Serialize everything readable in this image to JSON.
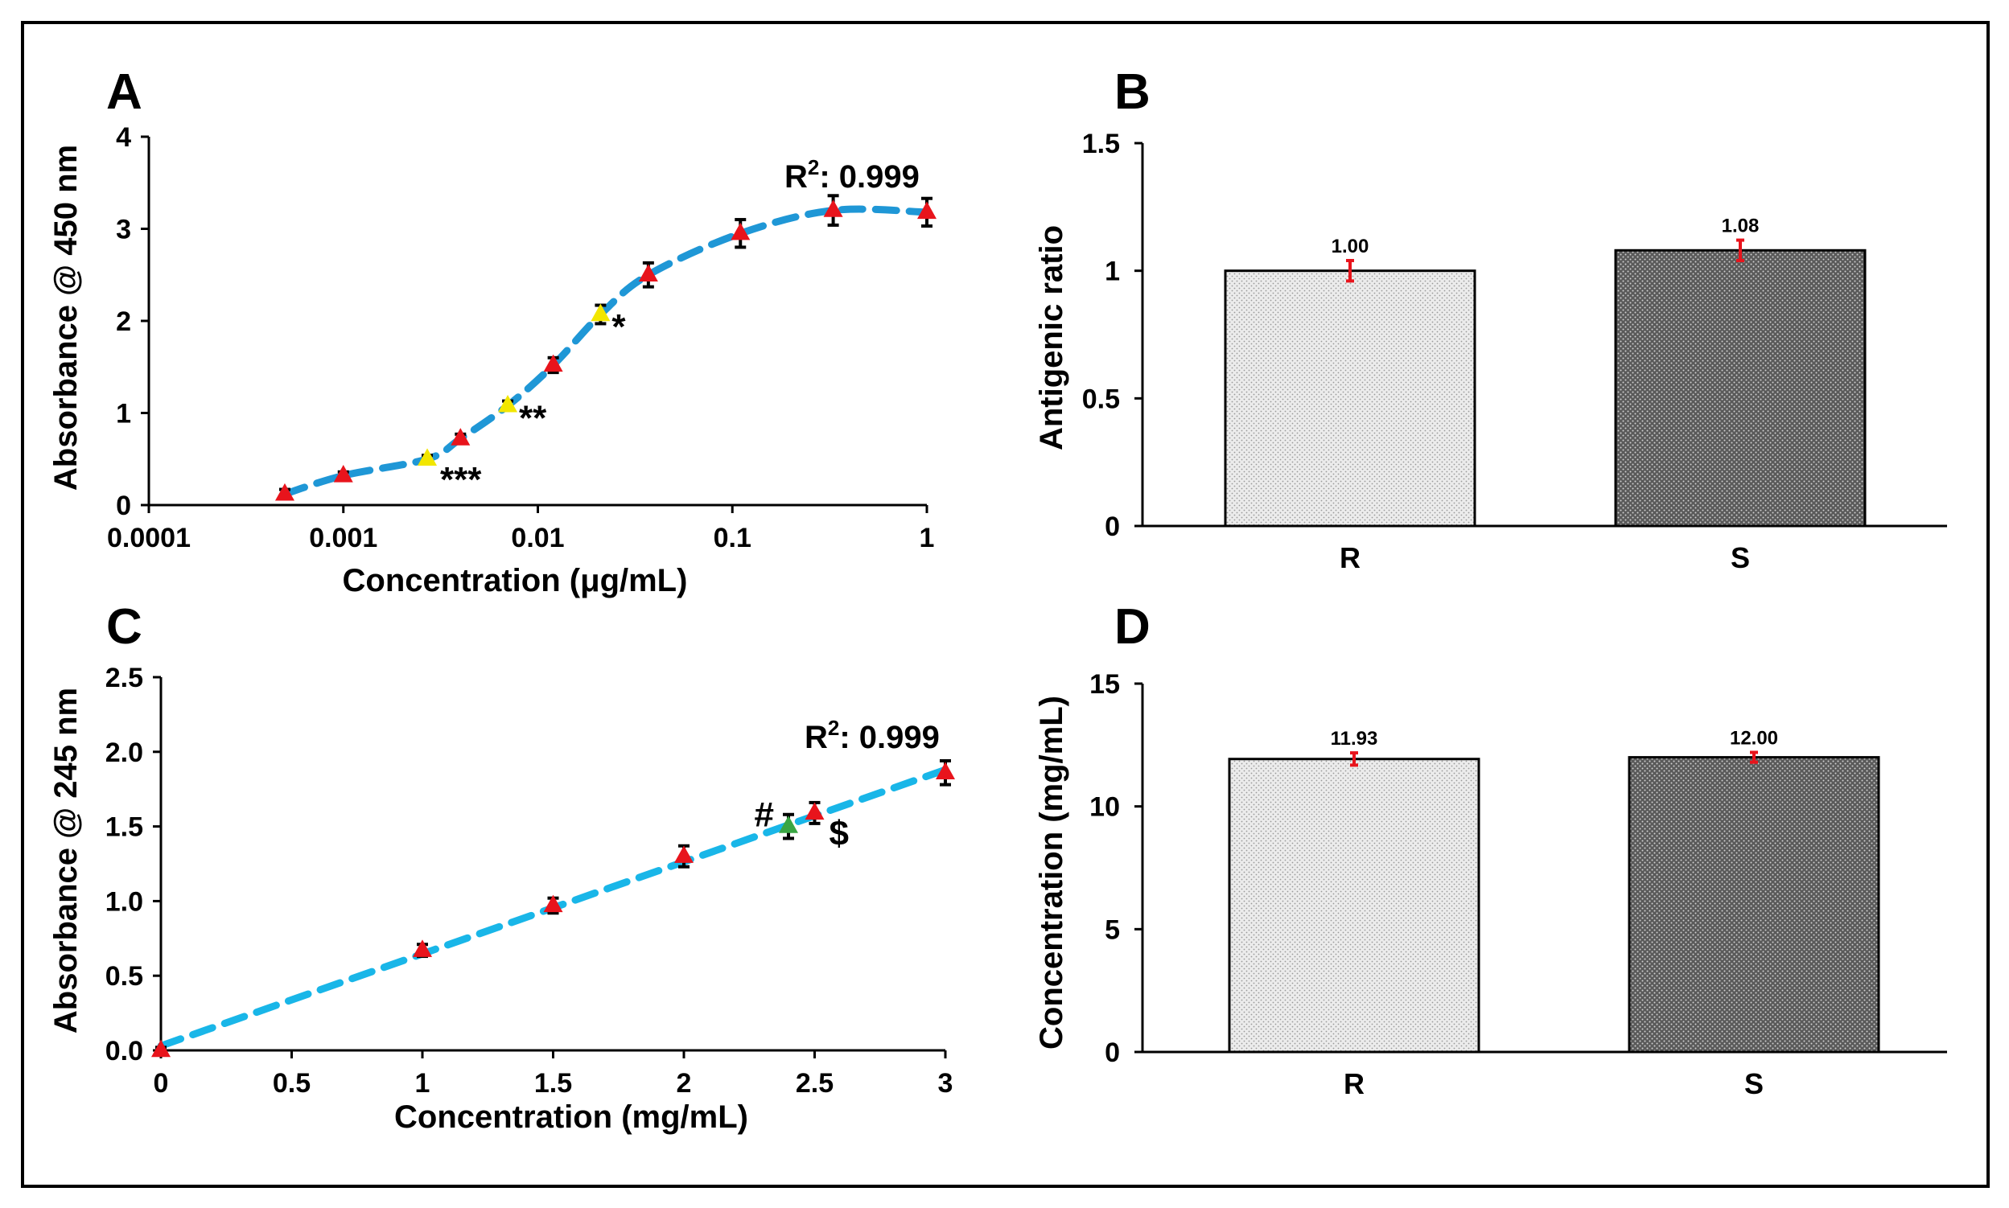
{
  "colors": {
    "curve": "#1f97d6",
    "curve_c": "#19b6e8",
    "marker": "#e8141c",
    "marker_highlight": "#f2e600",
    "marker_green": "#3aa643",
    "error_bar": "#000000",
    "bar_error": "#e8141c",
    "frame": "#000000"
  },
  "chart_data": [
    {
      "id": "A",
      "panel_label": "A",
      "type": "scatter",
      "x_scale": "log",
      "xlabel": "Concentration (μg/mL)",
      "ylabel": "Absorbance @ 450 nm",
      "xlim": [
        0.0001,
        1
      ],
      "ylim": [
        0,
        4
      ],
      "x_ticks": [
        0.0001,
        0.001,
        0.01,
        0.1,
        1
      ],
      "x_tick_labels": [
        "0.0001",
        "0.001",
        "0.01",
        "0.1",
        "1"
      ],
      "y_ticks": [
        0,
        1,
        2,
        3,
        4
      ],
      "y_tick_labels": [
        "0",
        "1",
        "2",
        "3",
        "4"
      ],
      "fit_label": "R",
      "fit_sup": "2",
      "fit_value": ": 0.999",
      "points": [
        {
          "x": 0.0005,
          "y": 0.12,
          "err": 0.05,
          "color": "red"
        },
        {
          "x": 0.001,
          "y": 0.32,
          "err": 0.04,
          "color": "red"
        },
        {
          "x": 0.0027,
          "y": 0.5,
          "err": 0.04,
          "color": "yellow",
          "annotation": "***"
        },
        {
          "x": 0.004,
          "y": 0.72,
          "err": 0.05,
          "color": "red"
        },
        {
          "x": 0.007,
          "y": 1.08,
          "err": 0.05,
          "color": "yellow",
          "annotation": "**"
        },
        {
          "x": 0.012,
          "y": 1.52,
          "err": 0.08,
          "color": "red"
        },
        {
          "x": 0.021,
          "y": 2.07,
          "err": 0.1,
          "color": "yellow",
          "annotation": "*"
        },
        {
          "x": 0.037,
          "y": 2.5,
          "err": 0.13,
          "color": "red"
        },
        {
          "x": 0.11,
          "y": 2.95,
          "err": 0.15,
          "color": "red"
        },
        {
          "x": 0.33,
          "y": 3.2,
          "err": 0.16,
          "color": "red"
        },
        {
          "x": 1.0,
          "y": 3.18,
          "err": 0.15,
          "color": "red"
        }
      ]
    },
    {
      "id": "B",
      "panel_label": "B",
      "type": "bar",
      "categories": [
        "R",
        "S"
      ],
      "values": [
        1.0,
        1.08
      ],
      "value_labels": [
        "1.00",
        "1.08"
      ],
      "errors": [
        0.04,
        0.04
      ],
      "patterns": [
        "light",
        "dark"
      ],
      "ylabel": "Antigenic ratio",
      "ylim": [
        0,
        1.5
      ],
      "y_ticks": [
        0,
        0.5,
        1,
        1.5
      ],
      "y_tick_labels": [
        "0",
        "0.5",
        "1",
        "1.5"
      ]
    },
    {
      "id": "C",
      "panel_label": "C",
      "type": "scatter",
      "xlabel": "Concentration (mg/mL)",
      "ylabel": "Absorbance @ 245 nm",
      "xlim": [
        0,
        3
      ],
      "ylim": [
        0,
        2.5
      ],
      "x_ticks": [
        0,
        0.5,
        1,
        1.5,
        2,
        2.5,
        3
      ],
      "x_tick_labels": [
        "0",
        "0.5",
        "1",
        "1.5",
        "2",
        "2.5",
        "3"
      ],
      "y_ticks": [
        0,
        0.5,
        1,
        1.5,
        2,
        2.5
      ],
      "y_tick_labels": [
        "0.0",
        "0.5",
        "1.0",
        "1.5",
        "2.0",
        "2.5"
      ],
      "fit_label": "R",
      "fit_sup": "2",
      "fit_value": ": 0.999",
      "fit_line": {
        "x0": 0,
        "y0": 0.03,
        "x1": 3,
        "y1": 1.88
      },
      "points": [
        {
          "x": 0,
          "y": 0.0,
          "err": 0.02,
          "color": "red"
        },
        {
          "x": 1,
          "y": 0.67,
          "err": 0.04,
          "color": "red"
        },
        {
          "x": 1.5,
          "y": 0.97,
          "err": 0.05,
          "color": "red"
        },
        {
          "x": 2,
          "y": 1.3,
          "err": 0.07,
          "color": "red"
        },
        {
          "x": 2.4,
          "y": 1.5,
          "err": 0.08,
          "color": "green",
          "annotation": "#"
        },
        {
          "x": 2.5,
          "y": 1.59,
          "err": 0.07,
          "color": "red",
          "annotation": "$"
        },
        {
          "x": 3,
          "y": 1.86,
          "err": 0.08,
          "color": "red"
        }
      ]
    },
    {
      "id": "D",
      "panel_label": "D",
      "type": "bar",
      "categories": [
        "R",
        "S"
      ],
      "values": [
        11.93,
        12.0
      ],
      "value_labels": [
        "11.93",
        "12.00"
      ],
      "errors": [
        0.25,
        0.2
      ],
      "patterns": [
        "light",
        "dark"
      ],
      "ylabel": "Concentration (mg/mL)",
      "ylim": [
        0,
        15
      ],
      "y_ticks": [
        0,
        5,
        10,
        15
      ],
      "y_tick_labels": [
        "0",
        "5",
        "10",
        "15"
      ]
    }
  ]
}
